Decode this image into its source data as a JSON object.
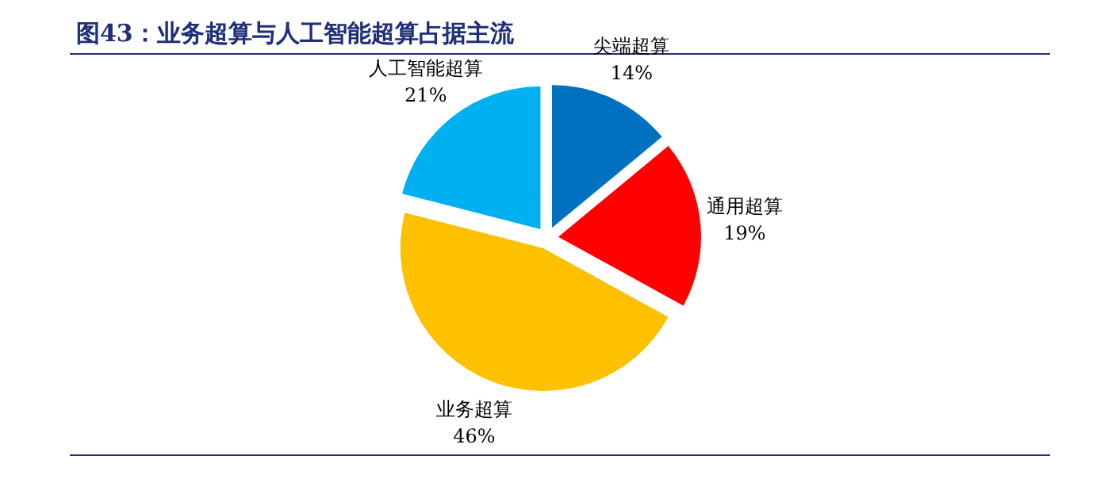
{
  "chart_data": {
    "type": "pie",
    "title": "图43：业务超算与人工智能超算占据主流",
    "categories": [
      "尖端超算",
      "通用超算",
      "业务超算",
      "人工智能超算"
    ],
    "values": [
      14,
      19,
      46,
      21
    ],
    "colors": [
      "#0070c0",
      "#ff0000",
      "#ffc000",
      "#00b0f0"
    ],
    "value_labels": [
      "14%",
      "19%",
      "46%",
      "21%"
    ]
  }
}
